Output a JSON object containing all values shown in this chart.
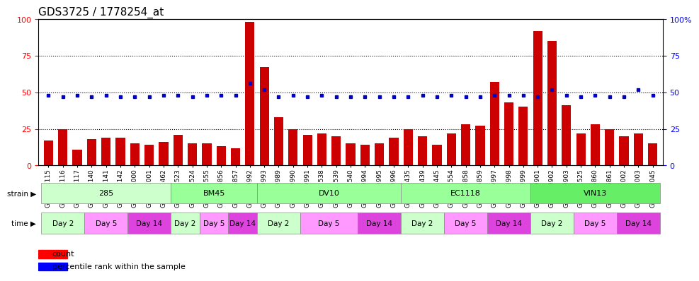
{
  "title": "GDS3725 / 1778254_at",
  "samples": [
    "GSM291115",
    "GSM291116",
    "GSM291117",
    "GSM291140",
    "GSM291141",
    "GSM291142",
    "GSM291000",
    "GSM291001",
    "GSM291462",
    "GSM291523",
    "GSM291524",
    "GSM291555",
    "GSM296856",
    "GSM296857",
    "GSM290992",
    "GSM290993",
    "GSM290989",
    "GSM290990",
    "GSM290991",
    "GSM291538",
    "GSM291539",
    "GSM291540",
    "GSM290994",
    "GSM290995",
    "GSM290996",
    "GSM291435",
    "GSM291439",
    "GSM291445",
    "GSM291554",
    "GSM296858",
    "GSM296859",
    "GSM290997",
    "GSM290998",
    "GSM290999",
    "GSM290901",
    "GSM290902",
    "GSM290903",
    "GSM291525",
    "GSM296860",
    "GSM296861",
    "GSM291002",
    "GSM291003",
    "GSM292045"
  ],
  "bar_values": [
    17,
    25,
    11,
    18,
    19,
    19,
    15,
    14,
    16,
    21,
    15,
    15,
    13,
    12,
    98,
    67,
    33,
    25,
    21,
    22,
    20,
    15,
    14,
    15,
    19,
    25,
    20,
    14,
    22,
    28,
    27,
    57,
    43,
    40,
    92,
    85,
    41,
    22,
    28,
    25,
    20,
    22,
    15
  ],
  "percentile_values": [
    48,
    47,
    48,
    47,
    48,
    47,
    47,
    47,
    48,
    48,
    47,
    48,
    48,
    48,
    56,
    52,
    47,
    48,
    47,
    48,
    47,
    47,
    47,
    47,
    47,
    47,
    48,
    47,
    48,
    47,
    47,
    48,
    48,
    48,
    47,
    52,
    48,
    47,
    48,
    47,
    47,
    52,
    48
  ],
  "bar_color": "#cc0000",
  "percentile_color": "#0000cc",
  "strains": [
    {
      "label": "285",
      "start": 0,
      "end": 9,
      "color": "#ccffcc"
    },
    {
      "label": "BM45",
      "start": 9,
      "end": 15,
      "color": "#99ff99"
    },
    {
      "label": "DV10",
      "start": 15,
      "end": 25,
      "color": "#99ff99"
    },
    {
      "label": "EC1118",
      "start": 25,
      "end": 34,
      "color": "#99ff99"
    },
    {
      "label": "VIN13",
      "start": 34,
      "end": 43,
      "color": "#66ee66"
    }
  ],
  "time_groups": [
    {
      "label": "Day 2",
      "start": 0,
      "end": 3
    },
    {
      "label": "Day 5",
      "start": 3,
      "end": 6
    },
    {
      "label": "Day 14",
      "start": 6,
      "end": 9
    },
    {
      "label": "Day 2",
      "start": 9,
      "end": 11
    },
    {
      "label": "Day 5",
      "start": 11,
      "end": 13
    },
    {
      "label": "Day 14",
      "start": 13,
      "end": 15
    },
    {
      "label": "Day 2",
      "start": 15,
      "end": 18
    },
    {
      "label": "Day 5",
      "start": 18,
      "end": 22
    },
    {
      "label": "Day 14",
      "start": 22,
      "end": 25
    },
    {
      "label": "Day 2",
      "start": 25,
      "end": 28
    },
    {
      "label": "Day 5",
      "start": 28,
      "end": 31
    },
    {
      "label": "Day 14",
      "start": 31,
      "end": 34
    },
    {
      "label": "Day 2",
      "start": 34,
      "end": 37
    },
    {
      "label": "Day 5",
      "start": 37,
      "end": 40
    },
    {
      "label": "Day 14",
      "start": 40,
      "end": 43
    }
  ],
  "time_colors": {
    "Day 2": "#ccffcc",
    "Day 5": "#ff99ff",
    "Day 14": "#dd44dd"
  },
  "ylim": [
    0,
    100
  ],
  "yticks": [
    0,
    25,
    50,
    75,
    100
  ],
  "hlines": [
    25,
    50,
    75
  ],
  "background_color": "#ffffff",
  "title_fontsize": 11,
  "bar_tick_fontsize": 6.5
}
